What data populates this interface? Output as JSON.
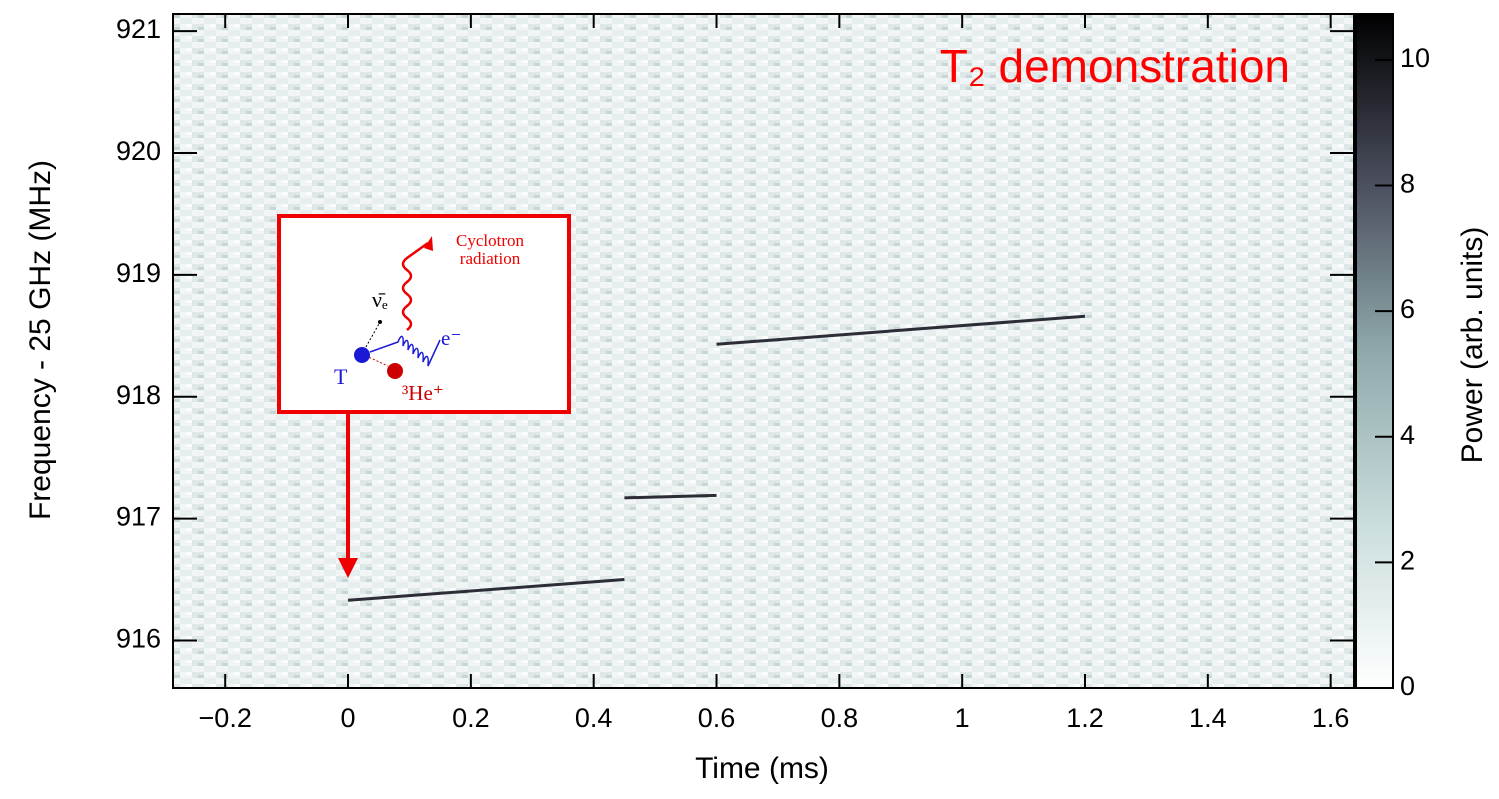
{
  "chart_data": {
    "type": "spectrogram",
    "xlabel": "Time (ms)",
    "ylabel": "Frequency - 25 GHz (MHz)",
    "colorbar_label": "Power (arb. units)",
    "annotation": "T₂ demonstration",
    "annotation_color": "#ff0000",
    "xlim": [
      -0.285,
      1.638
    ],
    "ylim": [
      915.61,
      921.14
    ],
    "clim": [
      0,
      10.73
    ],
    "xticks": [
      {
        "value": -0.2,
        "label": "−0.2"
      },
      0,
      0.2,
      0.4,
      0.6,
      0.8,
      1,
      1.2,
      1.4,
      1.6
    ],
    "yticks": [
      916,
      917,
      918,
      919,
      920,
      921
    ],
    "cticks": [
      0,
      2,
      4,
      6,
      8,
      10
    ],
    "colormap": [
      "#ffffff",
      "#c9dcdc",
      "#8fa9ab",
      "#4a4e5e",
      "#000000"
    ],
    "tracks": [
      {
        "x": [
          0,
          0.45
        ],
        "values": [
          916.33,
          916.5
        ],
        "color": "#2d2d38"
      },
      {
        "x": [
          0.45,
          0.6
        ],
        "values": [
          917.17,
          917.19
        ],
        "color": "#2d2d38"
      },
      {
        "x": [
          0.6,
          1.2
        ],
        "values": [
          918.43,
          918.66
        ],
        "color": "#2d2d38"
      }
    ],
    "inset": {
      "radiation": "Cyclotron radiation",
      "neutrino": "ν̄ₑ",
      "electron": "e⁻",
      "tritium": "T",
      "helium": "³He⁺"
    }
  }
}
